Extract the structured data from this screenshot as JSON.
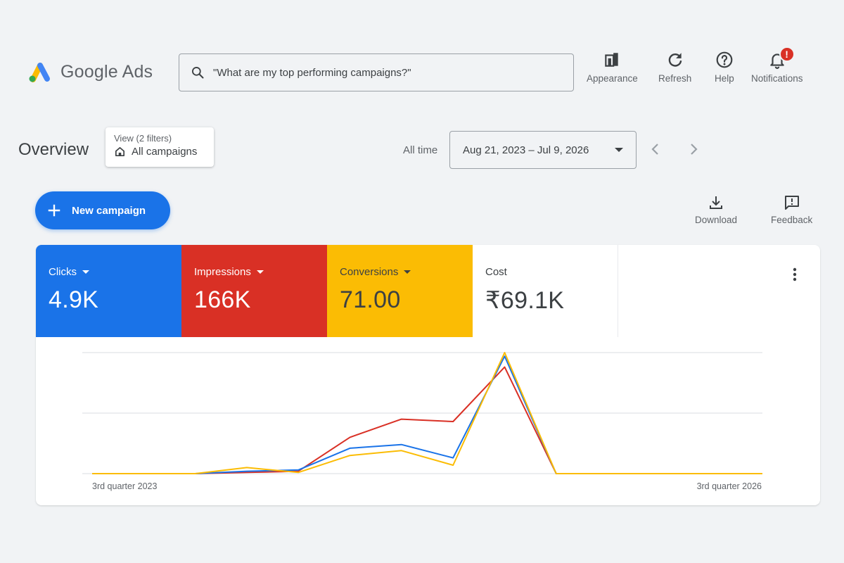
{
  "header": {
    "brand": "Google Ads",
    "search_placeholder": "\"What are my top performing campaigns?\"",
    "actions": [
      {
        "label": "Appearance",
        "icon": "appearance-icon"
      },
      {
        "label": "Refresh",
        "icon": "refresh-icon"
      },
      {
        "label": "Help",
        "icon": "help-icon"
      },
      {
        "label": "Notifications",
        "icon": "notifications-icon",
        "badge": "!"
      }
    ]
  },
  "overview": {
    "title": "Overview",
    "filter_sub": "View (2 filters)",
    "filter_main": "All campaigns",
    "date_prefix": "All time",
    "date_range": "Aug 21, 2023 – Jul 9, 2026"
  },
  "toolbar": {
    "new_campaign": "New campaign",
    "download": "Download",
    "feedback": "Feedback"
  },
  "metrics": [
    {
      "label": "Clicks",
      "value": "4.9K",
      "color": "#1a73e8",
      "text_color": "#ffffff"
    },
    {
      "label": "Impressions",
      "value": "166K",
      "color": "#d93025",
      "text_color": "#ffffff"
    },
    {
      "label": "Conversions",
      "value": "71.00",
      "color": "#fbbc04",
      "text_color": "#3c4043"
    },
    {
      "label": "Cost",
      "value": "₹69.1K",
      "color": "#ffffff",
      "text_color": "#3c4043"
    }
  ],
  "chart_data": {
    "type": "line",
    "x_labels": [
      "3rd quarter 2023",
      "3rd quarter 2026"
    ],
    "ylim": [
      0,
      1
    ],
    "grid": true,
    "series": [
      {
        "color": "#d93025",
        "values": [
          0,
          0,
          0,
          0.01,
          0.02,
          0.3,
          0.45,
          0.43,
          0.88,
          0,
          0,
          0,
          0,
          0
        ]
      },
      {
        "color": "#1a73e8",
        "values": [
          0,
          0,
          0,
          0.02,
          0.03,
          0.21,
          0.24,
          0.13,
          0.97,
          0,
          0,
          0,
          0,
          0
        ]
      },
      {
        "color": "#fbbc04",
        "values": [
          0,
          0,
          0,
          0.05,
          0.01,
          0.15,
          0.19,
          0.07,
          1.0,
          0,
          0,
          0,
          0,
          0
        ]
      }
    ]
  }
}
